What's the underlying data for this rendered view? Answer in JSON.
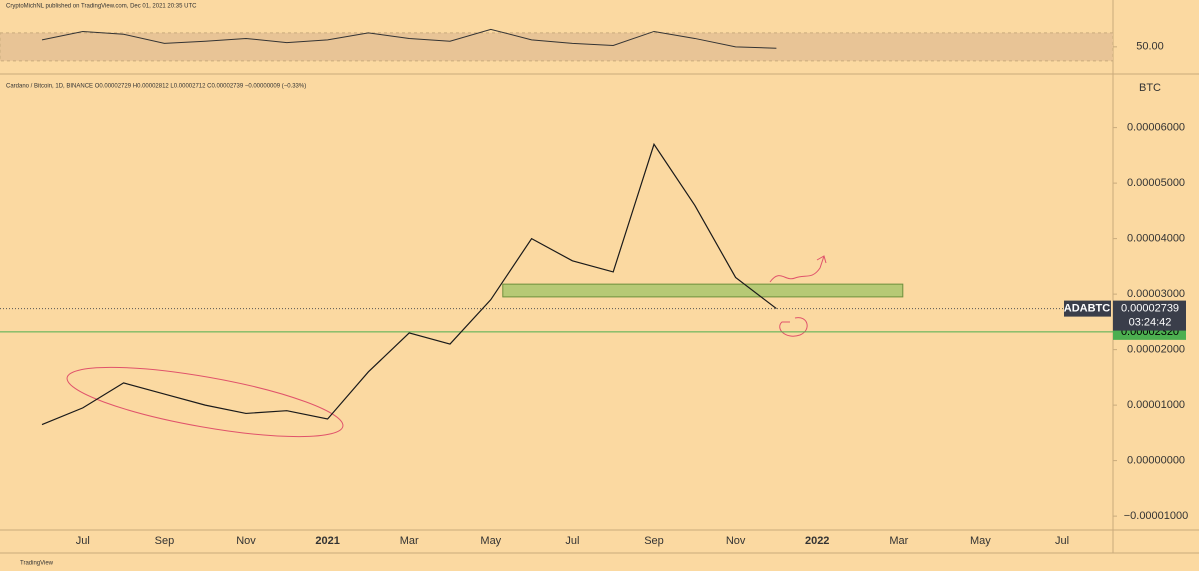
{
  "header": "CryptoMichNL published on TradingView.com, Dec 01, 2021 20:35 UTC",
  "footer": "TradingView",
  "chart_data": {
    "type": "line",
    "title": "Cardano / Bitcoin, 1D, BINANCE  O0.00002729 H0.00002812 L0.00002712 C0.00002739 −0.00000009 (−0.33%)",
    "y_axis_label": "BTC",
    "categories": [
      null,
      "Jul",
      null,
      "Sep",
      null,
      "Nov",
      null,
      "2021",
      null,
      "Mar",
      null,
      "May",
      null,
      "Jul",
      null,
      "Sep",
      null,
      "Nov",
      null,
      "2022",
      null,
      "Mar",
      null,
      "May",
      null,
      "Jul",
      null
    ],
    "series": [
      {
        "name": "ADABTC",
        "color": "#1a1a1a",
        "values": [
          6.5e-06,
          9.5e-06,
          1.4e-05,
          1.2e-05,
          1e-05,
          8.5e-06,
          9e-06,
          7.5e-06,
          1.6e-05,
          2.3e-05,
          2.1e-05,
          2.9e-05,
          4e-05,
          3.6e-05,
          3.4e-05,
          5.7e-05,
          4.6e-05,
          3.3e-05,
          2.74e-05,
          null,
          null,
          null,
          null,
          null,
          null,
          null,
          null
        ]
      }
    ],
    "ylim": [
      -1.25e-05,
      6.93e-05
    ],
    "yticks": [
      {
        "value": -1e-05,
        "label": "−0.00001000"
      },
      {
        "value": 0,
        "label": "0.00000000"
      },
      {
        "value": 1e-05,
        "label": "0.00001000"
      },
      {
        "value": 2e-05,
        "label": "0.00002000"
      },
      {
        "value": 3e-05,
        "label": "0.00003000"
      },
      {
        "value": 4e-05,
        "label": "0.00004000"
      },
      {
        "value": 5e-05,
        "label": "0.00005000"
      },
      {
        "value": 6e-05,
        "label": "0.00006000"
      }
    ],
    "last": {
      "symbol": "ADABTC",
      "value": 2.739e-05,
      "countdown": "03:24:42"
    },
    "level": {
      "value": 2.32e-05,
      "label": "0.00002320",
      "color": "#4caf50"
    },
    "zone": {
      "low": 2.95e-05,
      "high": 3.18e-05,
      "color": "#a5c46a"
    },
    "rsi": {
      "color": "#333333",
      "values": [
        60,
        72,
        68,
        55,
        58,
        62,
        56,
        60,
        70,
        62,
        58,
        75,
        60,
        55,
        52,
        72,
        62,
        50,
        48,
        null,
        null,
        null,
        null,
        null,
        null,
        null,
        null
      ],
      "ylim": [
        14,
        117
      ],
      "band": [
        30,
        70
      ],
      "yticks": [
        {
          "value": 50,
          "label": "50.00"
        }
      ]
    }
  }
}
